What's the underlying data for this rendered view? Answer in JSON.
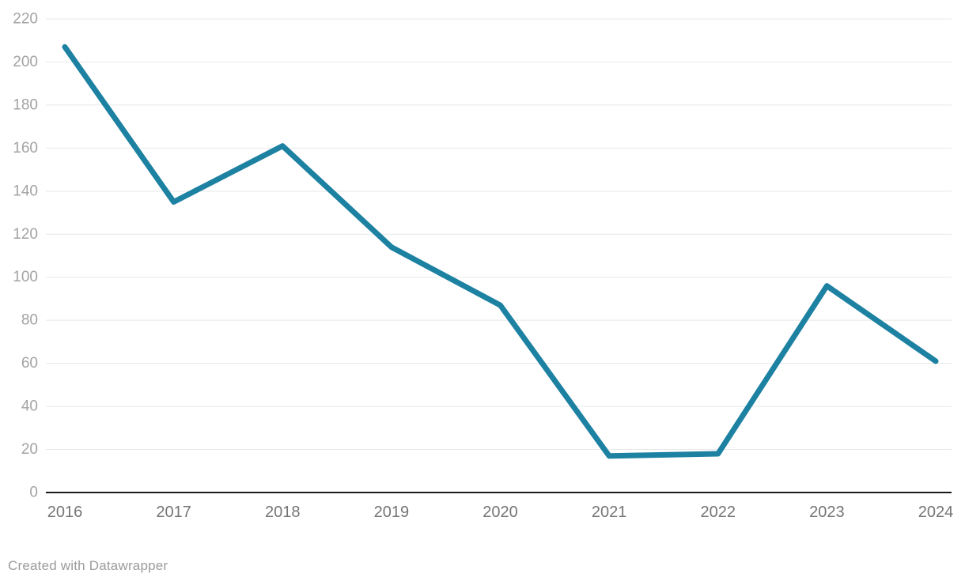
{
  "chart_data": {
    "type": "line",
    "categories": [
      "2016",
      "2017",
      "2018",
      "2019",
      "2020",
      "2021",
      "2022",
      "2023",
      "2024"
    ],
    "values": [
      207,
      135,
      161,
      114,
      87,
      17,
      18,
      96,
      61
    ],
    "title": "",
    "xlabel": "",
    "ylabel": "",
    "ylim": [
      0,
      220
    ],
    "ytick_step": 20,
    "grid": true,
    "legend_position": "none",
    "line_color": "#1d81a2",
    "line_width": 7
  },
  "footer": {
    "credit": "Created with Datawrapper"
  },
  "style": {
    "background": "#ffffff",
    "gridline_color": "#e8e8e8",
    "baseline_color": "#1a1a1a",
    "y_label_color": "#a3a3a3",
    "x_label_color": "#757575",
    "credit_color": "#9b9b9b"
  }
}
